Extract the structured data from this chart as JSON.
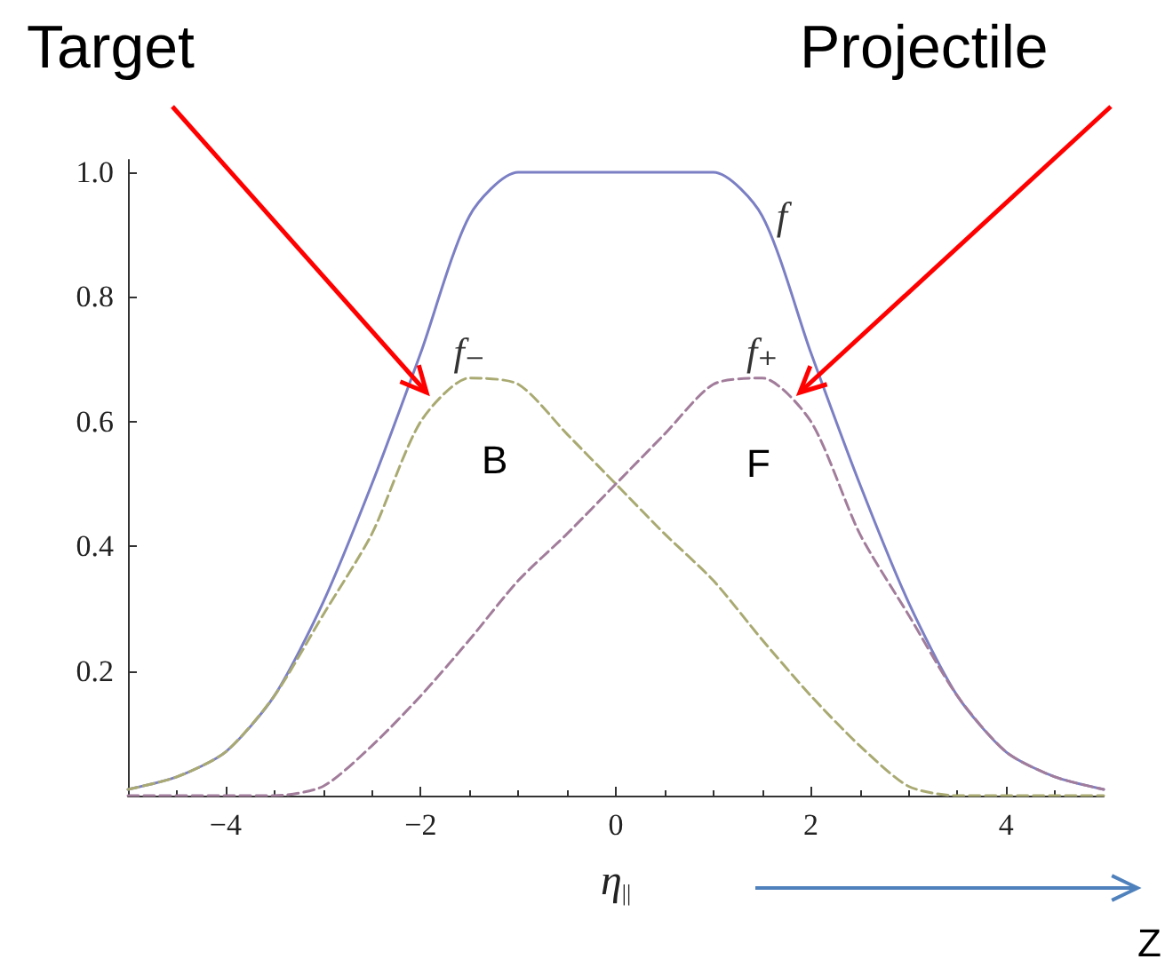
{
  "chart_data": {
    "type": "line",
    "xlabel": "η$_{||}$",
    "xlim": [
      -5,
      5
    ],
    "xticks": [
      {
        "value": -4,
        "label": "−4"
      },
      {
        "value": -2,
        "label": "−2"
      },
      0,
      2,
      4
    ],
    "ylim": [
      0,
      1.02
    ],
    "yticks": [
      0.2,
      0.4,
      0.6,
      0.8,
      {
        "value": 1,
        "label": "1.0"
      }
    ],
    "grid": false,
    "marker": "none",
    "series": [
      {
        "name": "f",
        "color": "#7b7fc4",
        "line_style": "solid",
        "x": [
          -5,
          -4.5,
          -4,
          -3.5,
          -3,
          -2.5,
          -2,
          -1.5,
          -1,
          1,
          1.5,
          2,
          2.5,
          3,
          3.5,
          4,
          4.5,
          5
        ],
        "values": [
          0.01,
          0.03,
          0.07,
          0.16,
          0.31,
          0.5,
          0.71,
          0.93,
          1,
          1,
          0.93,
          0.71,
          0.5,
          0.31,
          0.16,
          0.07,
          0.03,
          0.01
        ]
      },
      {
        "name": "f₋",
        "color": "#a9aa72",
        "line_style": "dashed",
        "x": [
          -5,
          -4.5,
          -4,
          -3.5,
          -3,
          -2.5,
          -2,
          -1.5,
          -1,
          -0.5,
          0,
          0.5,
          1,
          1.5,
          2,
          2.5,
          3,
          3.5,
          4,
          5
        ],
        "values": [
          0.01,
          0.03,
          0.07,
          0.16,
          0.29,
          0.42,
          0.6,
          0.67,
          0.66,
          0.58,
          0.5,
          0.42,
          0.345,
          0.25,
          0.16,
          0.08,
          0.015,
          0,
          0,
          0
        ]
      },
      {
        "name": "f₊",
        "color": "#a27d9b",
        "line_style": "dashed",
        "x": [
          -5,
          -4,
          -3.5,
          -3,
          -2.5,
          -2,
          -1.5,
          -1,
          -0.5,
          0,
          0.5,
          1,
          1.5,
          2,
          2.5,
          3,
          3.5,
          4,
          4.5,
          5
        ],
        "values": [
          0,
          0,
          0,
          0.015,
          0.08,
          0.16,
          0.25,
          0.345,
          0.42,
          0.5,
          0.58,
          0.66,
          0.67,
          0.6,
          0.42,
          0.29,
          0.16,
          0.07,
          0.03,
          0.01
        ]
      }
    ],
    "annotations": [
      "Target",
      "Projectile",
      "B",
      "F",
      "Z"
    ]
  }
}
